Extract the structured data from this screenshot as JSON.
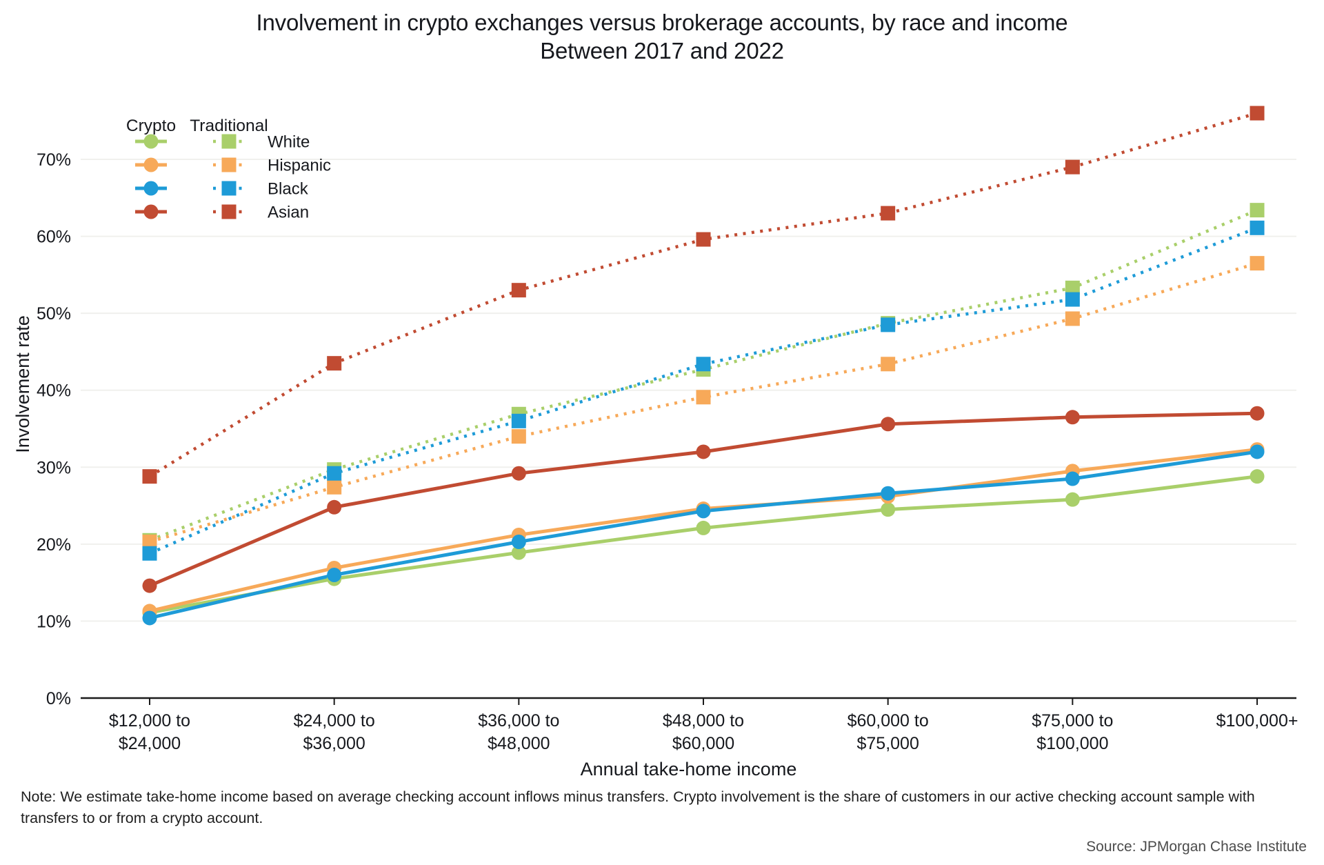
{
  "title": {
    "line1": "Involvement in crypto exchanges versus brokerage accounts, by race and income",
    "line2": "Between 2017 and 2022"
  },
  "legend": {
    "col_crypto": "Crypto",
    "col_traditional": "Traditional",
    "races": [
      "White",
      "Hispanic",
      "Black",
      "Asian"
    ]
  },
  "note": "Note: We estimate take-home income based on average checking account inflows minus transfers. Crypto involvement is the share of customers in our active checking account sample with\ntransfers to or from a crypto account.",
  "source": "Source: JPMorgan Chase Institute",
  "colors": {
    "White": "#a9cf6a",
    "Hispanic": "#f7a959",
    "Black": "#1e9bd7",
    "Asian": "#c14b32",
    "grid": "#f0f0ed",
    "axis": "#1a1a1a",
    "text": "#16181d"
  },
  "chart_data": {
    "type": "line",
    "title": "Involvement in crypto exchanges versus brokerage accounts, by race and income — Between 2017 and 2022",
    "xlabel": "Annual take-home income",
    "ylabel": "Involvement rate",
    "unit": "%",
    "grid": true,
    "legend_position": "top-left",
    "ylim": [
      0,
      78
    ],
    "yticks": [
      0,
      10,
      20,
      30,
      40,
      50,
      60,
      70
    ],
    "categories": [
      "$12,000 to $24,000",
      "$24,000 to $36,000",
      "$36,000 to $48,000",
      "$48,000 to $60,000",
      "$60,000 to $75,000",
      "$75,000 to $100,000",
      "$100,000+"
    ],
    "category_label_lines": [
      [
        "$12,000 to",
        "$24,000"
      ],
      [
        "$24,000 to",
        "$36,000"
      ],
      [
        "$36,000 to",
        "$48,000"
      ],
      [
        "$48,000 to",
        "$60,000"
      ],
      [
        "$60,000 to",
        "$75,000"
      ],
      [
        "$75,000 to",
        "$100,000"
      ],
      [
        "$100,000+"
      ]
    ],
    "series": [
      {
        "name": "White",
        "group": "Traditional",
        "style": "dotted",
        "marker": "square",
        "color": "#a9cf6a",
        "values": [
          20.5,
          29.7,
          36.9,
          42.7,
          48.7,
          53.3,
          63.4
        ]
      },
      {
        "name": "Hispanic",
        "group": "Traditional",
        "style": "dotted",
        "marker": "square",
        "color": "#f7a959",
        "values": [
          20.3,
          27.4,
          34.0,
          39.1,
          43.4,
          49.3,
          56.5
        ]
      },
      {
        "name": "Black",
        "group": "Traditional",
        "style": "dotted",
        "marker": "square",
        "color": "#1e9bd7",
        "values": [
          18.8,
          29.2,
          36.0,
          43.4,
          48.5,
          51.8,
          61.1
        ]
      },
      {
        "name": "Asian",
        "group": "Traditional",
        "style": "dotted",
        "marker": "square",
        "color": "#c14b32",
        "values": [
          28.8,
          43.5,
          53.0,
          59.6,
          63.0,
          69.0,
          76.0
        ]
      },
      {
        "name": "White",
        "group": "Crypto",
        "style": "solid",
        "marker": "circle",
        "color": "#a9cf6a",
        "values": [
          11.1,
          15.5,
          18.9,
          22.1,
          24.5,
          25.8,
          28.8
        ]
      },
      {
        "name": "Hispanic",
        "group": "Crypto",
        "style": "solid",
        "marker": "circle",
        "color": "#f7a959",
        "values": [
          11.3,
          16.9,
          21.2,
          24.6,
          26.2,
          29.5,
          32.3
        ]
      },
      {
        "name": "Black",
        "group": "Crypto",
        "style": "solid",
        "marker": "circle",
        "color": "#1e9bd7",
        "values": [
          10.4,
          16.0,
          20.3,
          24.3,
          26.6,
          28.5,
          32.0
        ]
      },
      {
        "name": "Asian",
        "group": "Crypto",
        "style": "solid",
        "marker": "circle",
        "color": "#c14b32",
        "values": [
          14.6,
          24.8,
          29.2,
          32.0,
          35.6,
          36.5,
          37.0
        ]
      }
    ]
  }
}
